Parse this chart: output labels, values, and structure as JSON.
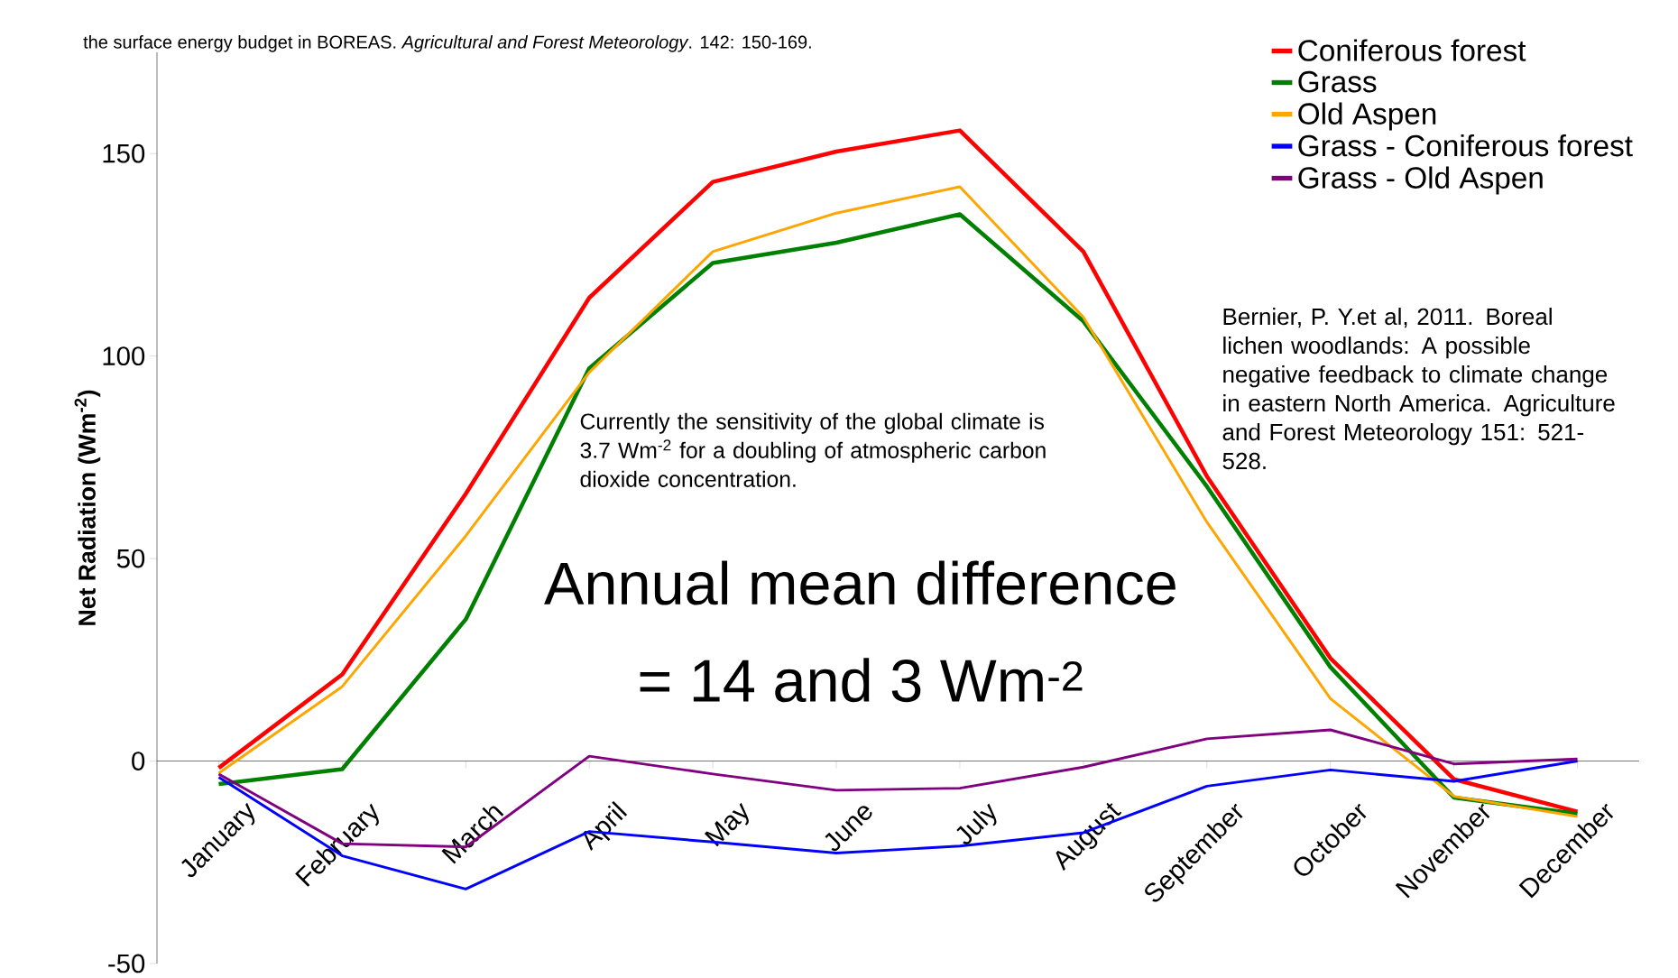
{
  "chart_data": {
    "type": "line",
    "ylabel": "Net Radiation (Wm$^{-2}$)",
    "categories": [
      "January",
      "February",
      "March",
      "April",
      "May",
      "June",
      "July",
      "August",
      "September",
      "October",
      "November",
      "December"
    ],
    "series": [
      {
        "name": "Coniferous forest",
        "color": "#ff0000",
        "values": [
          -1.7,
          21.4,
          66,
          114.4,
          143,
          150.5,
          155.7,
          125.8,
          70.3,
          25.4,
          -4.5,
          -12.5
        ]
      },
      {
        "name": "Grass",
        "color": "#008000",
        "values": [
          -5.7,
          -2,
          35,
          97,
          123,
          128,
          135,
          108.6,
          67.8,
          23.2,
          -9,
          -13
        ]
      },
      {
        "name": "Old Aspen",
        "color": "#ffa500",
        "values": [
          -3,
          18.4,
          55.6,
          96,
          125.8,
          135.3,
          141.8,
          109.6,
          59,
          15.4,
          -8.7,
          -13.7
        ]
      },
      {
        "name": "Grass - Coniferous forest",
        "color": "#0000ff",
        "values": [
          -4,
          -23.4,
          -31.6,
          -17.4,
          -20,
          -22.7,
          -21,
          -17.7,
          -6.2,
          -2.2,
          -5,
          0
        ]
      },
      {
        "name": "Grass - Old Aspen",
        "color": "#800080",
        "values": [
          -3.2,
          -20.4,
          -21.2,
          1.2,
          -3.2,
          -7.2,
          -6.7,
          -1.5,
          5.5,
          7.7,
          -0.7,
          0.5
        ]
      }
    ],
    "ylim": [
      -50,
      175
    ],
    "yticks": [
      -50,
      0,
      50,
      100,
      150
    ],
    "grid": false,
    "legend": "top right",
    "marker": "none",
    "line_style": "solid",
    "annotations": [
      "the surface energy budget in BOREAS. *Agricultural and Forest Meteorology*. 142: 150-169.",
      "Currently the sensitivity of the global climate is 3.7 Wm$^{-2}$ for a doubling of atmospheric carbon dioxide concentration.",
      "Annual mean difference",
      "= 14 and 3 Wm$^{-2}$",
      "Bernier, P. Y.et al, 2011. Boreal lichen woodlands: A possible negative feedback to climate change in eastern North America. Agriculture and Forest Meteorology 151: 521-528."
    ]
  }
}
